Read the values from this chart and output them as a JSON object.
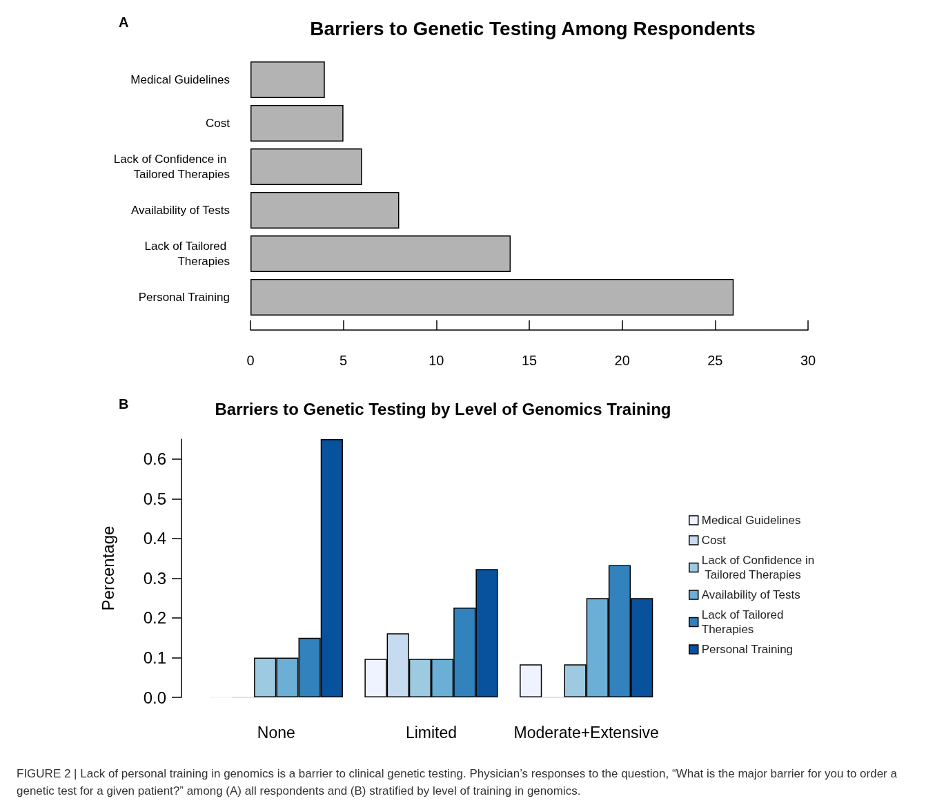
{
  "chart_data": [
    {
      "type": "bar",
      "orientation": "horizontal",
      "title": "Barriers to Genetic Testing Among Respondents",
      "annotations": [
        "A"
      ],
      "categories": [
        "Medical Guidelines",
        "Cost",
        "Lack of Confidence in Tailored Therapies",
        "Availability of Tests",
        "Lack of Tailored Therapies",
        "Personal Training"
      ],
      "values": [
        4,
        5,
        6,
        8,
        14,
        26
      ],
      "color": "#b3b3b3",
      "xlim": [
        0,
        30
      ],
      "xticks": [
        0,
        5,
        10,
        15,
        20,
        25,
        30
      ],
      "grid": false,
      "legend": false
    },
    {
      "type": "bar",
      "title": "Barriers to Genetic Testing by Level of Genomics Training",
      "ylabel": "Percentage",
      "annotations": [
        "B",
        "FIGURE 2 | Lack of personal training in genomics is a barrier to clinical genetic testing. Physician’s responses to the question, “What is the major barrier for you to order a genetic test for a given patient?” among (A) all respondents and (B) stratified by level of training in genomics."
      ],
      "categories": [
        "None",
        "Limited",
        "Moderate+Extensive"
      ],
      "series": [
        {
          "name": "Medical Guidelines",
          "color": "#eff3ff",
          "values": [
            0,
            0.097,
            0.083
          ]
        },
        {
          "name": "Cost",
          "color": "#c6dbef",
          "values": [
            0,
            0.161,
            0
          ]
        },
        {
          "name": "Lack of Confidence in Tailored Therapies",
          "color": "#9ecae1",
          "values": [
            0.1,
            0.097,
            0.083
          ]
        },
        {
          "name": "Availability of Tests",
          "color": "#6baed6",
          "values": [
            0.1,
            0.097,
            0.25
          ]
        },
        {
          "name": "Lack of Tailored Therapies",
          "color": "#3182bd",
          "values": [
            0.15,
            0.226,
            0.333
          ]
        },
        {
          "name": "Personal Training",
          "color": "#08519c",
          "values": [
            0.65,
            0.323,
            0.25
          ]
        }
      ],
      "ylim": [
        0,
        0.65
      ],
      "yticks": [
        {
          "value": 0,
          "label": "0.0"
        },
        0.1,
        0.2,
        0.3,
        0.4,
        0.5,
        0.6
      ],
      "grid": false,
      "legend": "right"
    }
  ]
}
